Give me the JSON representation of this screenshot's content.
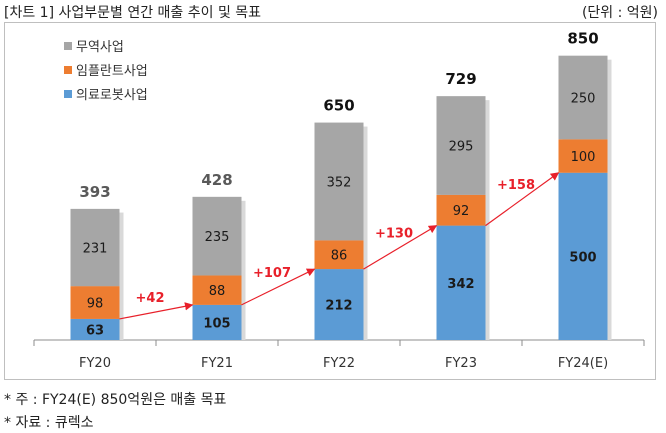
{
  "header": {
    "title": "[차트 1] 사업부문별 연간 매출 추이 및 목표",
    "unit": "(단위 : 억원)"
  },
  "notes": {
    "note1": "* 주 : FY24(E) 850억원은 매출 목표",
    "note2": "* 자료 : 큐렉소"
  },
  "colors": {
    "trade": "#a6a6a6",
    "implant": "#ed7d31",
    "robot": "#5b9bd5",
    "growth": "#e8202a"
  },
  "chart_data": {
    "type": "bar",
    "stacked": true,
    "categories": [
      "FY20",
      "FY21",
      "FY22",
      "FY23",
      "FY24(E)"
    ],
    "series": [
      {
        "name": "의료로봇사업",
        "values": [
          63,
          105,
          212,
          342,
          500
        ]
      },
      {
        "name": "임플란트사업",
        "values": [
          98,
          88,
          86,
          92,
          100
        ]
      },
      {
        "name": "무역사업",
        "values": [
          231,
          235,
          352,
          295,
          250
        ]
      }
    ],
    "totals": [
      393,
      428,
      650,
      729,
      850
    ],
    "growth_labels": [
      "+42",
      "+107",
      "+130",
      "+158"
    ],
    "legend": [
      "무역사업",
      "임플란트사업",
      "의료로봇사업"
    ],
    "legend_position": "top-left",
    "grid": false
  }
}
